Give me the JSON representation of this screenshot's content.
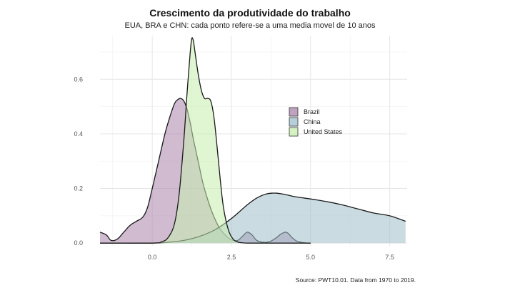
{
  "chart_data": {
    "type": "area",
    "subtype": "density",
    "title": "Crescimento da produtividade do trabalho",
    "subtitle": "EUA, BRA e CHN: cada ponto refere-se a uma media movel de 10 anos",
    "caption": "Source: PWT10.01. Data from 1970 to 2019.",
    "xlabel": "",
    "ylabel": "",
    "xlim": [
      -1.65,
      8.05
    ],
    "ylim": [
      -0.01,
      0.76
    ],
    "x_ticks": [
      {
        "value": 0,
        "label": "0.0"
      },
      {
        "value": 2.5,
        "label": "2.5"
      },
      {
        "value": 5,
        "label": "5.0"
      },
      {
        "value": 7.5,
        "label": "7.5"
      }
    ],
    "y_ticks": [
      {
        "value": 0,
        "label": "0.0"
      },
      {
        "value": 0.2,
        "label": "0.2"
      },
      {
        "value": 0.4,
        "label": "0.4"
      },
      {
        "value": 0.6,
        "label": "0.6"
      }
    ],
    "grid": true,
    "legend": {
      "position": "right",
      "title": ""
    },
    "series": [
      {
        "name": "Brazil",
        "color": "#a983a9",
        "x": [
          -1.65,
          -1.45,
          -1.3,
          -1.1,
          -0.9,
          -0.7,
          -0.5,
          -0.3,
          -0.15,
          0.0,
          0.2,
          0.4,
          0.55,
          0.7,
          0.8,
          0.9,
          1.0,
          1.1,
          1.2,
          1.3,
          1.45,
          1.6,
          1.75,
          1.9,
          2.1,
          2.3,
          2.5,
          2.7,
          2.85,
          3.0,
          3.15,
          3.3,
          3.5,
          3.7,
          3.9,
          4.05,
          4.2,
          4.3,
          4.4,
          4.55,
          4.7,
          4.9,
          5.0
        ],
        "y": [
          0.04,
          0.03,
          0.01,
          0.015,
          0.04,
          0.065,
          0.08,
          0.095,
          0.13,
          0.2,
          0.3,
          0.4,
          0.46,
          0.51,
          0.525,
          0.53,
          0.52,
          0.49,
          0.44,
          0.38,
          0.3,
          0.22,
          0.16,
          0.11,
          0.06,
          0.03,
          0.012,
          0.01,
          0.025,
          0.04,
          0.03,
          0.01,
          0.003,
          0.005,
          0.018,
          0.032,
          0.04,
          0.035,
          0.022,
          0.008,
          0.003,
          0.0,
          0.0
        ]
      },
      {
        "name": "China",
        "color": "#9fbfcb",
        "x": [
          -1.65,
          0.0,
          0.5,
          1.0,
          1.5,
          2.0,
          2.5,
          3.0,
          3.3,
          3.6,
          3.9,
          4.2,
          4.5,
          4.8,
          5.2,
          5.6,
          6.0,
          6.5,
          7.0,
          7.5,
          8.0
        ],
        "y": [
          0.0,
          0.0,
          0.003,
          0.01,
          0.025,
          0.05,
          0.09,
          0.14,
          0.165,
          0.18,
          0.183,
          0.178,
          0.17,
          0.165,
          0.158,
          0.15,
          0.14,
          0.125,
          0.11,
          0.1,
          0.08
        ]
      },
      {
        "name": "United States",
        "color": "#c7eeae",
        "x": [
          -1.65,
          0.0,
          0.3,
          0.5,
          0.7,
          0.85,
          1.0,
          1.1,
          1.2,
          1.25,
          1.3,
          1.35,
          1.45,
          1.55,
          1.65,
          1.75,
          1.85,
          1.95,
          2.05,
          2.15,
          2.25,
          2.4,
          2.55,
          2.7,
          2.85,
          3.0,
          3.5,
          4.0,
          5.0
        ],
        "y": [
          0.0,
          0.0,
          0.005,
          0.02,
          0.07,
          0.18,
          0.38,
          0.55,
          0.7,
          0.75,
          0.74,
          0.7,
          0.62,
          0.56,
          0.53,
          0.53,
          0.52,
          0.46,
          0.35,
          0.23,
          0.13,
          0.05,
          0.015,
          0.004,
          0.001,
          0.0,
          0.0,
          0.0,
          0.0
        ]
      }
    ]
  }
}
